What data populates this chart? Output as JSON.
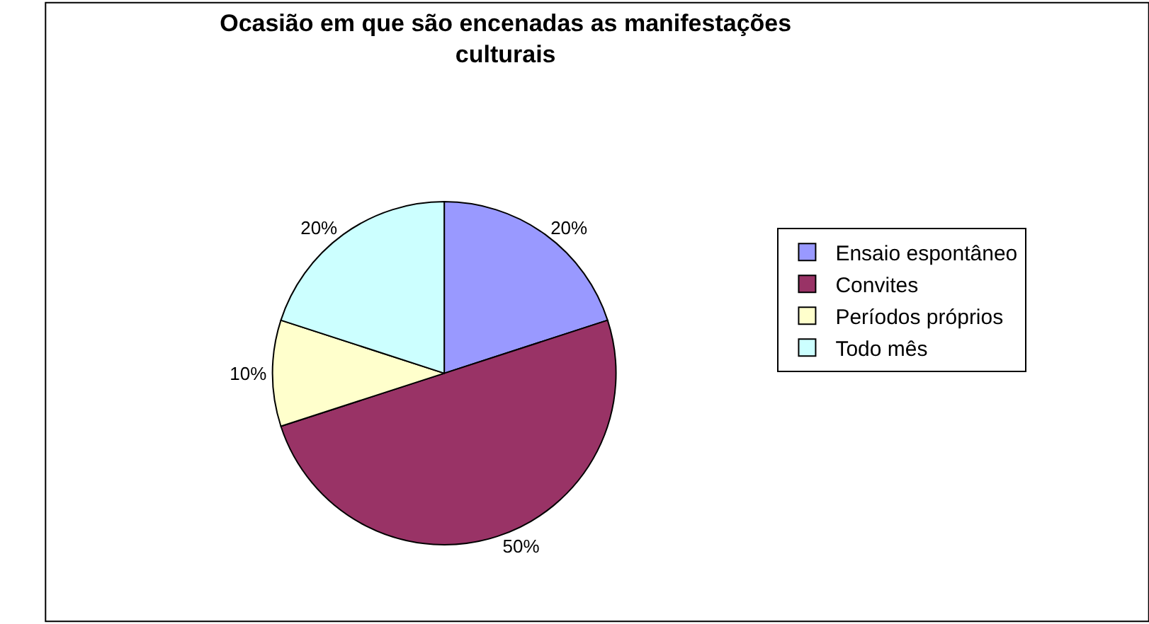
{
  "chart_data": {
    "type": "pie",
    "title": "Ocasião em que são encenadas as manifestações culturais",
    "categories": [
      "Ensaio espontâneo",
      "Convites",
      "Períodos próprios",
      "Todo mês"
    ],
    "values": [
      20,
      50,
      10,
      20
    ],
    "colors": [
      "#9999ff",
      "#993366",
      "#ffffcc",
      "#ccffff"
    ],
    "value_labels": [
      "20%",
      "50%",
      "10%",
      "20%"
    ],
    "legend": "right"
  }
}
